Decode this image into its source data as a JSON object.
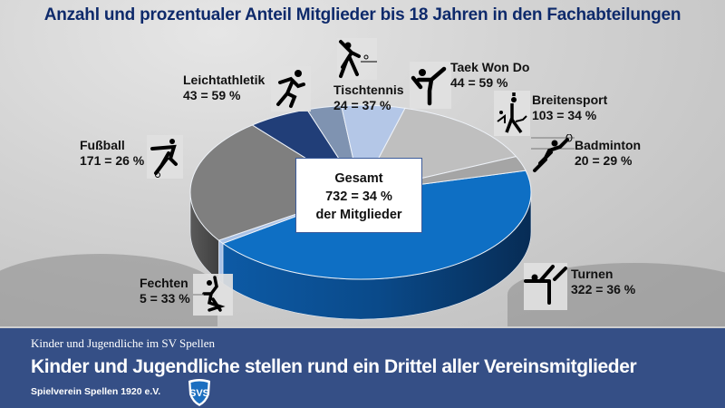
{
  "chart_data": {
    "type": "pie",
    "title": "Anzahl und prozentualer Anteil Mitglieder bis 18 Jahren in den Fachabteilungen",
    "unit": "Mitglieder bis 18 Jahre",
    "slices": [
      {
        "name": "Turnen",
        "value": 322,
        "percent": 36,
        "label": "322 = 36 %",
        "color": "#0e6fc4",
        "icon": "gymnast-icon"
      },
      {
        "name": "Fechten",
        "value": 5,
        "percent": 33,
        "label": "5 = 33 %",
        "color": "#a9c2e6",
        "icon": "fencer-icon"
      },
      {
        "name": "Fußball",
        "value": 171,
        "percent": 26,
        "label": "171 = 26 %",
        "color": "#7f7f7f",
        "icon": "soccer-player-icon"
      },
      {
        "name": "Leichtathletik",
        "value": 43,
        "percent": 59,
        "label": "43 = 59 %",
        "color": "#213e78",
        "icon": "runner-icon"
      },
      {
        "name": "Tischtennis",
        "value": 24,
        "percent": 37,
        "label": "24 = 37 %",
        "color": "#7f93b1",
        "icon": "table-tennis-icon"
      },
      {
        "name": "Taek Won Do",
        "value": 44,
        "percent": 59,
        "label": "44 = 59 %",
        "color": "#b4c7e7",
        "icon": "martial-arts-icon"
      },
      {
        "name": "Breitensport",
        "value": 103,
        "percent": 34,
        "label": "103 = 34 %",
        "color": "#bfbfbf",
        "icon": "recreational-sports-icon"
      },
      {
        "name": "Badminton",
        "value": 20,
        "percent": 29,
        "label": "20 = 29 %",
        "color": "#a5a5a5",
        "icon": "badminton-icon"
      }
    ],
    "total": {
      "heading": "Gesamt",
      "value_label": "732 = 34 %",
      "subtext": "der Mitglieder"
    }
  },
  "footer": {
    "subtitle": "Kinder und Jugendliche im SV Spellen",
    "headline": "Kinder und Jugendliche stellen rund ein Drittel aller Vereinsmitglieder",
    "club": "Spielverein Spellen 1920 e.V.",
    "logo_text": "SVS"
  },
  "colors": {
    "title": "#0e2a6b",
    "footer_bg": "#354f86"
  }
}
